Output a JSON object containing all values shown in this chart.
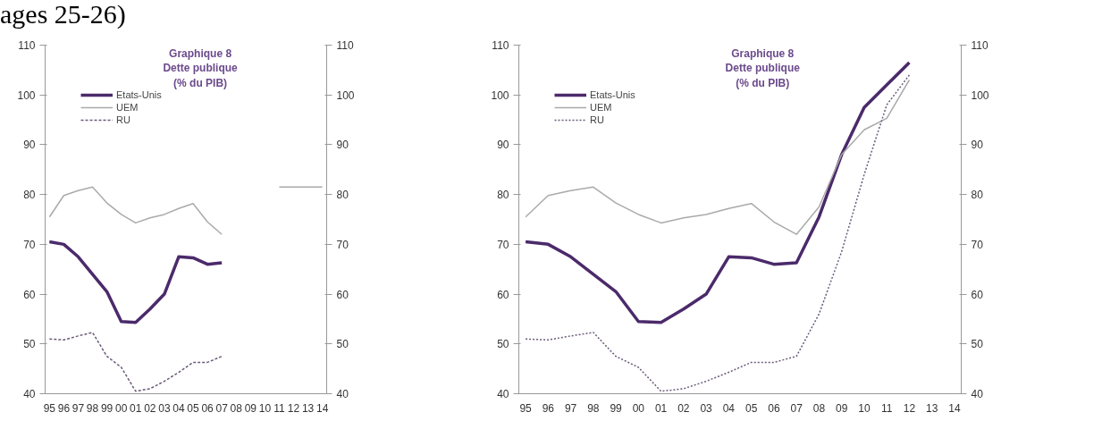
{
  "chart_data": [
    {
      "type": "line",
      "title": "Graphique 8\nDette publique\n(% du PIB)",
      "annotations": [
        "ages 25-26)"
      ],
      "categories": [
        "95",
        "96",
        "97",
        "98",
        "99",
        "00",
        "01",
        "02",
        "03",
        "04",
        "05",
        "06",
        "07",
        "08",
        "09",
        "10",
        "11",
        "12",
        "13",
        "14"
      ],
      "series": [
        {
          "name": "Etats-Unis",
          "color": "#4b2a6b",
          "values": [
            70.5,
            70,
            67.5,
            64,
            60.5,
            54.5,
            54.3,
            57,
            60,
            67.5,
            67.3,
            66,
            66.3,
            null,
            null,
            null,
            null,
            null,
            null,
            null
          ]
        },
        {
          "name": "UEM",
          "color": "#aaaaaa",
          "values": [
            75.5,
            79.8,
            80.8,
            81.5,
            78.3,
            76,
            74.3,
            75.3,
            76,
            77.2,
            78.2,
            74.5,
            72,
            null,
            null,
            null,
            81.5,
            81.5,
            81.5,
            81.5
          ]
        },
        {
          "name": "RU",
          "color": "#6a5a7a",
          "line_style": "dashed",
          "values": [
            51,
            50.8,
            51.6,
            52.3,
            47.5,
            45.3,
            40.5,
            41,
            42.5,
            44.3,
            46.3,
            46.3,
            47.5,
            null,
            null,
            null,
            null,
            null,
            null,
            null
          ]
        }
      ],
      "ylim": [
        40,
        110
      ],
      "yticks": [
        40,
        50,
        60,
        70,
        80,
        90,
        100,
        110
      ],
      "y2lim": [
        40,
        110
      ],
      "y2ticks": [
        40,
        50,
        60,
        70,
        80,
        90,
        100,
        110
      ],
      "legend": "top left"
    },
    {
      "type": "line",
      "title": "Graphique 8\nDette publique\n(% du PIB)",
      "categories": [
        "95",
        "96",
        "97",
        "98",
        "99",
        "00",
        "01",
        "02",
        "03",
        "04",
        "05",
        "06",
        "07",
        "08",
        "09",
        "10",
        "11",
        "12",
        "13",
        "14"
      ],
      "series": [
        {
          "name": "Etats-Unis",
          "color": "#4b2a6b",
          "values": [
            70.5,
            70,
            67.5,
            64,
            60.5,
            54.5,
            54.3,
            57,
            60,
            67.5,
            67.3,
            66,
            66.3,
            75.5,
            88,
            97.5,
            102,
            106.5,
            null,
            null
          ]
        },
        {
          "name": "UEM",
          "color": "#aaaaaa",
          "values": [
            75.5,
            79.8,
            80.8,
            81.5,
            78.3,
            76,
            74.3,
            75.3,
            76,
            77.2,
            78.2,
            74.5,
            72,
            77.5,
            88,
            93,
            95.3,
            103,
            null,
            null
          ]
        },
        {
          "name": "RU",
          "color": "#6a5a7a",
          "line_style": "dotted",
          "values": [
            51,
            50.8,
            51.6,
            52.3,
            47.5,
            45.3,
            40.5,
            41,
            42.5,
            44.3,
            46.3,
            46.3,
            47.5,
            56,
            68.5,
            84,
            98,
            104,
            null,
            null
          ]
        }
      ],
      "ylim": [
        40,
        110
      ],
      "yticks": [
        40,
        50,
        60,
        70,
        80,
        90,
        100,
        110
      ],
      "y2lim": [
        40,
        110
      ],
      "y2ticks": [
        40,
        50,
        60,
        70,
        80,
        90,
        100,
        110
      ],
      "legend": "top left"
    }
  ]
}
